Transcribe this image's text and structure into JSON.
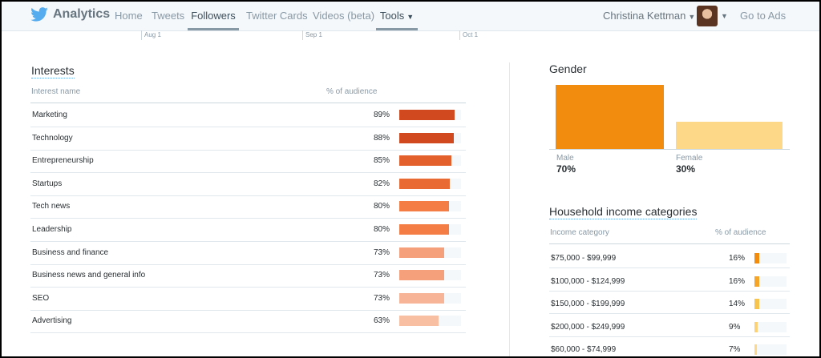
{
  "nav": {
    "brand": "Analytics",
    "items": [
      "Home",
      "Tweets",
      "Followers",
      "Twitter Cards",
      "Videos (beta)",
      "Tools"
    ],
    "active": "Followers",
    "user": "Christina Kettman",
    "go_to_ads": "Go to Ads"
  },
  "timeline": {
    "ticks": [
      "Aug 1",
      "Sep 1",
      "Oct 1"
    ]
  },
  "interests": {
    "title": "Interests",
    "col_name": "Interest name",
    "col_pct": "% of audience",
    "rows": [
      {
        "name": "Marketing",
        "pct_label": "89%",
        "pct": 89,
        "color": "#d14a1f"
      },
      {
        "name": "Technology",
        "pct_label": "88%",
        "pct": 88,
        "color": "#d14a1f"
      },
      {
        "name": "Entrepreneurship",
        "pct_label": "85%",
        "pct": 85,
        "color": "#e35f2c"
      },
      {
        "name": "Startups",
        "pct_label": "82%",
        "pct": 82,
        "color": "#ea6a34"
      },
      {
        "name": "Tech news",
        "pct_label": "80%",
        "pct": 80,
        "color": "#f47c45"
      },
      {
        "name": "Leadership",
        "pct_label": "80%",
        "pct": 80,
        "color": "#f47c45"
      },
      {
        "name": "Business and finance",
        "pct_label": "73%",
        "pct": 73,
        "color": "#f6a07b"
      },
      {
        "name": "Business news and general info",
        "pct_label": "73%",
        "pct": 73,
        "color": "#f6a07b"
      },
      {
        "name": "SEO",
        "pct_label": "73%",
        "pct": 73,
        "color": "#f8b496"
      },
      {
        "name": "Advertising",
        "pct_label": "63%",
        "pct": 63,
        "color": "#f9bfa3"
      }
    ]
  },
  "gender": {
    "title": "Gender",
    "male_label": "Male",
    "male_value": "70%",
    "male_pct": 70,
    "male_color": "#f28c0f",
    "female_label": "Female",
    "female_value": "30%",
    "female_pct": 30,
    "female_color": "#fcd888"
  },
  "income": {
    "title": "Household income categories",
    "col_name": "Income category",
    "col_pct": "% of audience",
    "rows": [
      {
        "name": "$75,000 - $99,999",
        "pct_label": "16%",
        "pct": 16,
        "color": "#f28c0f"
      },
      {
        "name": "$100,000 - $124,999",
        "pct_label": "16%",
        "pct": 16,
        "color": "#f5a62a"
      },
      {
        "name": "$150,000 - $199,999",
        "pct_label": "14%",
        "pct": 14,
        "color": "#f8c450"
      },
      {
        "name": "$200,000 - $249,999",
        "pct_label": "9%",
        "pct": 9,
        "color": "#fbd278"
      },
      {
        "name": "$60,000 - $74,999",
        "pct_label": "7%",
        "pct": 7,
        "color": "#fcd888"
      }
    ]
  }
}
